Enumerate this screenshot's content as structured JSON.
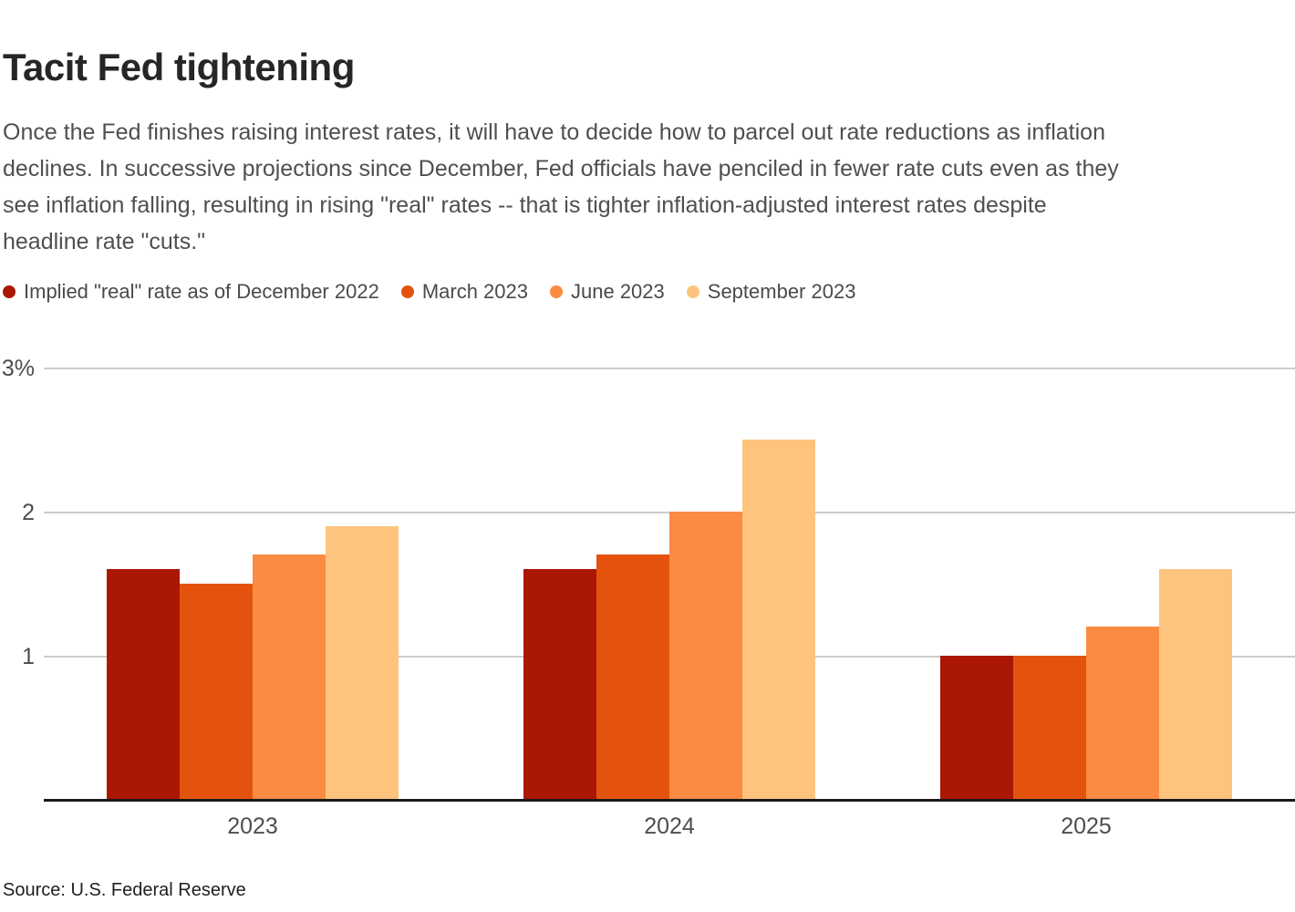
{
  "header": {
    "title": "Tacit Fed tightening",
    "subtitle": "Once the Fed finishes raising interest rates, it will have to decide how to parcel out rate reductions as inflation\ndeclines. In successive projections since December, Fed officials have penciled in fewer rate cuts even as they\nsee inflation falling, resulting in rising \"real\" rates -- that is tighter inflation-adjusted interest rates despite\nheadline rate \"cuts.\""
  },
  "chart_data": {
    "type": "bar",
    "title": "Tacit Fed tightening",
    "categories": [
      "2023",
      "2024",
      "2025"
    ],
    "series": [
      {
        "name": "Implied \"real\" rate as of December 2022",
        "color": "#aa1703",
        "values": [
          1.6,
          1.6,
          1.0
        ]
      },
      {
        "name": "March 2023",
        "color": "#e4530e",
        "values": [
          1.5,
          1.7,
          1.0
        ]
      },
      {
        "name": "June 2023",
        "color": "#fb8b43",
        "values": [
          1.7,
          2.0,
          1.2
        ]
      },
      {
        "name": "September 2023",
        "color": "#fec47d",
        "values": [
          1.9,
          2.5,
          1.6
        ]
      }
    ],
    "ylabel": "",
    "xlabel": "",
    "ylim": [
      0,
      3
    ],
    "yticks": [
      {
        "value": 3,
        "label": "3%"
      },
      {
        "value": 2,
        "label": "2"
      },
      {
        "value": 1,
        "label": "1"
      }
    ],
    "grid": "horizontal",
    "grid_color": "#cccccc",
    "axis_color": "#1a1a1a",
    "legend_position": "top-left"
  },
  "footer": {
    "source": "Source: U.S. Federal Reserve"
  }
}
